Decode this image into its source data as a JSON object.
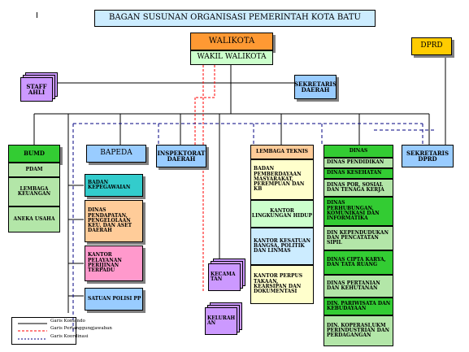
{
  "marker": "I",
  "title": "BAGAN SUSUNAN ORGANISASI  PEMERINTAH KOTA BATU",
  "walikota": "WALIKOTA",
  "wakil": "WAKIL WALIKOTA",
  "dprd": "DPRD",
  "staff_ahli": "STAFF AHLI",
  "sekretaris_daerah": "SEKRETARIS DAERAH",
  "bumd": {
    "header": "BUMD",
    "items": [
      "PDAM",
      "LEMBAGA KEUANGAN",
      "ANEKA USAHA"
    ]
  },
  "bapeda": "BAPEDA",
  "inspektorat": "INSPEKTORAT DAERAH",
  "lembaga_teknis": {
    "header": "LEMBAGA TEKNIS",
    "items": [
      "BADAN PEMBERDAYAAN MASYARAKAT, PEREMPUAN DAN KB",
      "KANTOR LINGKUNGAN HIDUP",
      "KANTOR KESATUAN BANGSA, POLITIK DAN LINMAS",
      "KANTOR PERPUS TAKAAN, KEARSIPAN DAN DOKUMENTASI"
    ]
  },
  "dinas": {
    "header": "DINAS",
    "items": [
      "DINAS PENDIDIKAN",
      "DINAS KESEHATAN",
      "DINAS POR, SOSIAL DAN TENAGA KERJA",
      "DINAS PERHUBUNGAN, KOMUNIKASI DAN INFORMATIKA",
      "DIN KEPENDUDUKAN DAN PENCATATAN SIPIL",
      "DINAS CIPTA KARYA, DAN TATA RUANG",
      "DINAS PERTANIAN DAN KEHUTANAN",
      "DIN. PARIWISATA DAN KEBUDAYAAN",
      "DIN. KOPERASI,UKM PERINDUSTRIAN DAN PERDAGANGAN"
    ]
  },
  "sekretaris_dprd": "SEKRETARIS DPRD",
  "left_column": [
    "BADAN KEPEGAWAIAN",
    "DINAS PENDAPATAN, PENGELOLAAN KEU. DAN ASET DAERAH",
    "KANTOR PELAYANAN PERIJINAN TERPADU",
    "SATUAN POLISI PP"
  ],
  "kecamatan": "KECAMA TAN",
  "kelurahan": "KELURAH AN",
  "legend": [
    "Garis Komando",
    "Garis Pertanggungjawaban",
    "Garis Koordinasi"
  ],
  "colors": {
    "title_bg": "#ccecff",
    "walikota_bg": "#ff9933",
    "wakil_bg": "#ccffcc",
    "dprd_bg": "#ffcc00",
    "blue_bg": "#99ccff",
    "bumd_bg": "#33cc33",
    "teal_bg": "#33cccc",
    "peach_bg": "#ffcc99",
    "pink_bg": "#ff99cc",
    "purple_bg": "#cc99ff",
    "command_line": "#000000",
    "responsibility_line": "#ff0000",
    "coordination_line": "#000080"
  }
}
